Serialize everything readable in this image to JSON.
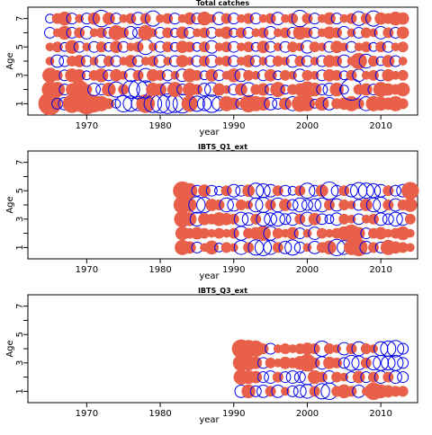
{
  "colors": {
    "positive": "#e8604a",
    "negative": "#0000ee",
    "frame": "#000000"
  },
  "chart_data": [
    {
      "type": "scatter",
      "subtype": "bubble-residuals",
      "title": "Total catches",
      "xlabel": "year",
      "ylabel": "Age",
      "xlim": [
        1962,
        2015
      ],
      "ylim": [
        0.2,
        7.8
      ],
      "xticks": [
        1970,
        1980,
        1990,
        2000,
        2010
      ],
      "yticks": [
        1,
        3,
        5,
        7
      ],
      "ages": [
        1,
        2,
        3,
        4,
        5,
        6,
        7
      ],
      "years": [
        1965,
        2013
      ],
      "values": {
        "1": [
          1.4,
          -0.3,
          -0.4,
          0.9,
          0.7,
          1.2,
          0.8,
          0.6,
          0.3,
          -0.2,
          -0.7,
          -0.6,
          -0.5,
          0.9,
          -0.8,
          -0.9,
          -1.0,
          -0.8,
          -0.9,
          0.7,
          -0.6,
          -0.5,
          -0.8,
          -0.5,
          0.6,
          0.4,
          -0.3,
          0.8,
          0.6,
          0.5,
          -0.4,
          -0.3,
          0.4,
          -0.5,
          0.7,
          0.6,
          -0.2,
          0.5,
          -0.4,
          0.3,
          0.4,
          0.6,
          0.3,
          -0.5,
          0.6,
          0.5,
          0.4,
          0.6,
          0.3
        ],
        "2": [
          0.7,
          0.6,
          -0.3,
          0.4,
          0.9,
          0.3,
          -0.4,
          -0.3,
          0.5,
          -0.6,
          0.3,
          -0.8,
          -0.9,
          -0.8,
          0.5,
          0.4,
          -0.5,
          0.6,
          -0.3,
          0.5,
          0.3,
          -0.4,
          -0.5,
          0.4,
          0.2,
          -0.3,
          0.4,
          -0.5,
          0.3,
          0.4,
          -0.3,
          0.6,
          -0.2,
          0.3,
          0.4,
          0.7,
          0.5,
          -0.3,
          -0.4,
          0.5,
          -0.2,
          -1.2,
          0.3,
          0.4,
          -0.3,
          0.6,
          0.4,
          0.3,
          0.5
        ],
        "3": [
          0.6,
          0.3,
          -0.3,
          0.5,
          0.4,
          -0.2,
          0.3,
          0.5,
          -0.3,
          0.4,
          0.2,
          -0.4,
          0.3,
          -0.5,
          0.4,
          0.3,
          -0.3,
          0.2,
          -0.4,
          0.5,
          0.3,
          -0.2,
          0.4,
          -0.3,
          0.2,
          0.5,
          -0.4,
          0.3,
          0.2,
          -0.3,
          0.4,
          -0.2,
          0.3,
          0.2,
          -0.4,
          0.3,
          0.2,
          -0.3,
          0.4,
          0.3,
          -0.2,
          0.3,
          -0.4,
          0.2,
          0.3,
          -0.3,
          0.4,
          0.2,
          0.3
        ],
        "4": [
          0.2,
          -0.4,
          -0.3,
          0.3,
          0.4,
          -0.3,
          0.2,
          -0.4,
          0.3,
          -0.3,
          0.2,
          0.4,
          -0.3,
          0.2,
          0.3,
          -0.4,
          0.2,
          -0.3,
          0.4,
          0.2,
          -0.3,
          0.3,
          -0.4,
          0.2,
          0.3,
          -0.3,
          0.2,
          0.4,
          -0.3,
          0.2,
          -0.3,
          0.3,
          0.2,
          -0.4,
          0.3,
          -0.3,
          0.2,
          -0.3,
          0.4,
          0.3,
          -0.4,
          0.2,
          0.7,
          -0.5,
          0.3,
          -0.2,
          0.4,
          -0.3,
          0.2
        ],
        "5": [
          0.2,
          0.3,
          -0.2,
          0.5,
          -0.3,
          0.2,
          -0.3,
          0.3,
          -0.2,
          0.4,
          -0.3,
          0.2,
          0.3,
          -0.6,
          0.2,
          -0.3,
          0.3,
          -0.2,
          0.4,
          0.3,
          -0.2,
          0.3,
          -0.4,
          0.2,
          0.3,
          -0.3,
          0.2,
          0.3,
          -0.2,
          0.4,
          -0.3,
          0.2,
          -0.3,
          0.3,
          0.2,
          -0.4,
          0.3,
          0.2,
          -0.3,
          0.4,
          0.2,
          -0.3,
          0.2,
          0.3,
          -0.2,
          0.3,
          -0.3,
          0.2,
          0.3
        ],
        "6": [
          -0.3,
          0.2,
          0.5,
          -0.3,
          0.3,
          -0.4,
          0.2,
          0.3,
          -0.3,
          0.6,
          0.3,
          -0.4,
          -0.3,
          0.6,
          0.2,
          -0.3,
          0.3,
          -0.2,
          0.4,
          -0.3,
          0.2,
          0.3,
          -0.3,
          0.2,
          0.4,
          -0.2,
          0.3,
          -0.3,
          0.2,
          0.3,
          -0.4,
          0.2,
          0.3,
          -0.3,
          0.5,
          0.3,
          -0.3,
          0.2,
          0.4,
          0.3,
          -0.4,
          0.2,
          -0.3,
          0.3,
          0.2,
          -0.4,
          0.3,
          -0.3,
          0.4
        ],
        "7": [
          -0.2,
          0.3,
          0.5,
          -0.3,
          0.2,
          -0.3,
          0.4,
          -0.7,
          0.4,
          -0.3,
          0.2,
          0.3,
          -0.4,
          0.3,
          -0.6,
          0.2,
          0.3,
          -0.3,
          0.2,
          0.4,
          -0.3,
          0.5,
          0.2,
          -0.4,
          0.3,
          -0.3,
          0.2,
          0.3,
          -0.3,
          0.2,
          0.3,
          -0.4,
          0.2,
          0.3,
          -0.7,
          0.3,
          -0.3,
          0.2,
          0.4,
          -0.3,
          0.2,
          0.3,
          -0.5,
          0.3,
          -0.6,
          0.4,
          0.3,
          0.5,
          0.4
        ]
      }
    },
    {
      "type": "scatter",
      "subtype": "bubble-residuals",
      "title": "IBTS_Q1_ext",
      "xlabel": "year",
      "ylabel": "Age",
      "xlim": [
        1962,
        2015
      ],
      "ylim": [
        0.2,
        7.8
      ],
      "xticks": [
        1970,
        1980,
        1990,
        2000,
        2010
      ],
      "yticks": [
        1,
        3,
        5,
        7
      ],
      "ages": [
        1,
        2,
        3,
        4,
        5
      ],
      "years": [
        1983,
        2014
      ],
      "values": {
        "1": [
          0.6,
          0.4,
          -0.3,
          0.2,
          0.5,
          -0.2,
          0.3,
          0.2,
          -0.5,
          0.3,
          -0.6,
          -0.7,
          -0.5,
          0.3,
          -0.4,
          -0.6,
          -0.3,
          0.2,
          -0.4,
          0.3,
          0.5,
          -0.7,
          -0.5,
          0.6,
          0.8,
          -0.4,
          0.3,
          -0.3,
          0.6,
          0.4,
          0.3,
          0.2
        ],
        "2": [
          0.5,
          0.3,
          0.4,
          0.3,
          0.2,
          0.3,
          0.2,
          0.3,
          -0.5,
          0.3,
          0.4,
          0.6,
          -0.5,
          0.3,
          0.2,
          0.4,
          -0.3,
          0.2,
          -0.4,
          0.3,
          0.2,
          0.3,
          0.5,
          0.8,
          0.4,
          -0.3,
          0.3,
          0.4,
          0.2,
          0.3,
          0.5,
          0.2
        ],
        "3": [
          0.7,
          0.5,
          -0.5,
          0.4,
          0.3,
          0.5,
          0.4,
          0.3,
          -0.5,
          -0.4,
          0.3,
          -0.5,
          -0.4,
          -0.5,
          -0.3,
          -0.4,
          0.3,
          -0.5,
          0.4,
          -0.3,
          -0.2,
          -0.4,
          0.3,
          0.2,
          -0.3,
          0.2,
          0.3,
          -0.4,
          -0.3,
          -0.5,
          -0.4,
          0.3
        ],
        "4": [
          0.8,
          0.5,
          -0.7,
          -0.6,
          0.4,
          0.3,
          -0.5,
          -0.4,
          0.3,
          0.2,
          -0.5,
          -0.6,
          0.3,
          -0.5,
          0.4,
          -0.3,
          -0.5,
          -0.3,
          -0.4,
          -0.5,
          0.3,
          -0.4,
          0.3,
          0.2,
          -0.3,
          0.4,
          -0.5,
          -0.6,
          0.3,
          -0.4,
          0.3,
          0.5
        ],
        "5": [
          0.9,
          0.6,
          -0.3,
          0.4,
          -0.3,
          -0.2,
          0.3,
          -0.4,
          -0.3,
          0.4,
          -0.6,
          -0.5,
          -0.4,
          0.3,
          -0.3,
          -0.2,
          0.3,
          -0.6,
          -0.3,
          0.4,
          -0.8,
          -0.3,
          0.3,
          -0.4,
          -0.7,
          -0.6,
          -0.5,
          -0.4,
          0.3,
          -0.3,
          -0.4,
          0.8
        ]
      }
    },
    {
      "type": "scatter",
      "subtype": "bubble-residuals",
      "title": "IBTS_Q3_ext",
      "xlabel": "year",
      "ylabel": "Age",
      "xlim": [
        1962,
        2015
      ],
      "ylim": [
        0.2,
        7.8
      ],
      "xticks": [
        1970,
        1980,
        1990,
        2000,
        2010
      ],
      "yticks": [
        1,
        3,
        5,
        7
      ],
      "ages": [
        1,
        2,
        3,
        4
      ],
      "years": [
        1991,
        2013
      ],
      "values": {
        "1": [
          -0.4,
          0.5,
          -0.3,
          -0.4,
          0.3,
          -0.4,
          0.2,
          -0.3,
          -0.4,
          -0.5,
          0.3,
          -0.6,
          -0.7,
          0.3,
          0.5,
          0.3,
          -0.4,
          0.2,
          0.8,
          0.5,
          0.4,
          0.3,
          0.3
        ],
        "2": [
          0.6,
          0.5,
          0.4,
          -0.3,
          -0.4,
          0.3,
          -0.3,
          -0.4,
          -0.3,
          -0.6,
          0.5,
          0.3,
          -0.4,
          0.3,
          0.2,
          -0.3,
          0.4,
          -0.3,
          0.3,
          -0.4,
          0.3,
          -0.4,
          -0.3
        ],
        "3": [
          0.7,
          0.6,
          0.4,
          -0.3,
          0.3,
          0.2,
          0.4,
          0.3,
          0.5,
          0.8,
          0.3,
          -0.4,
          0.4,
          0.3,
          -0.3,
          -0.6,
          -0.5,
          0.3,
          -0.5,
          -0.6,
          -0.5,
          -0.6,
          -0.3
        ],
        "4": [
          0.9,
          0.8,
          0.7,
          0.3,
          -0.3,
          0.2,
          0.3,
          0.2,
          0.3,
          0.4,
          0.3,
          -0.6,
          0.3,
          0.2,
          -0.4,
          0.3,
          -0.5,
          0.3,
          0.2,
          -0.5,
          -0.6,
          -0.7,
          -0.3
        ]
      }
    }
  ]
}
